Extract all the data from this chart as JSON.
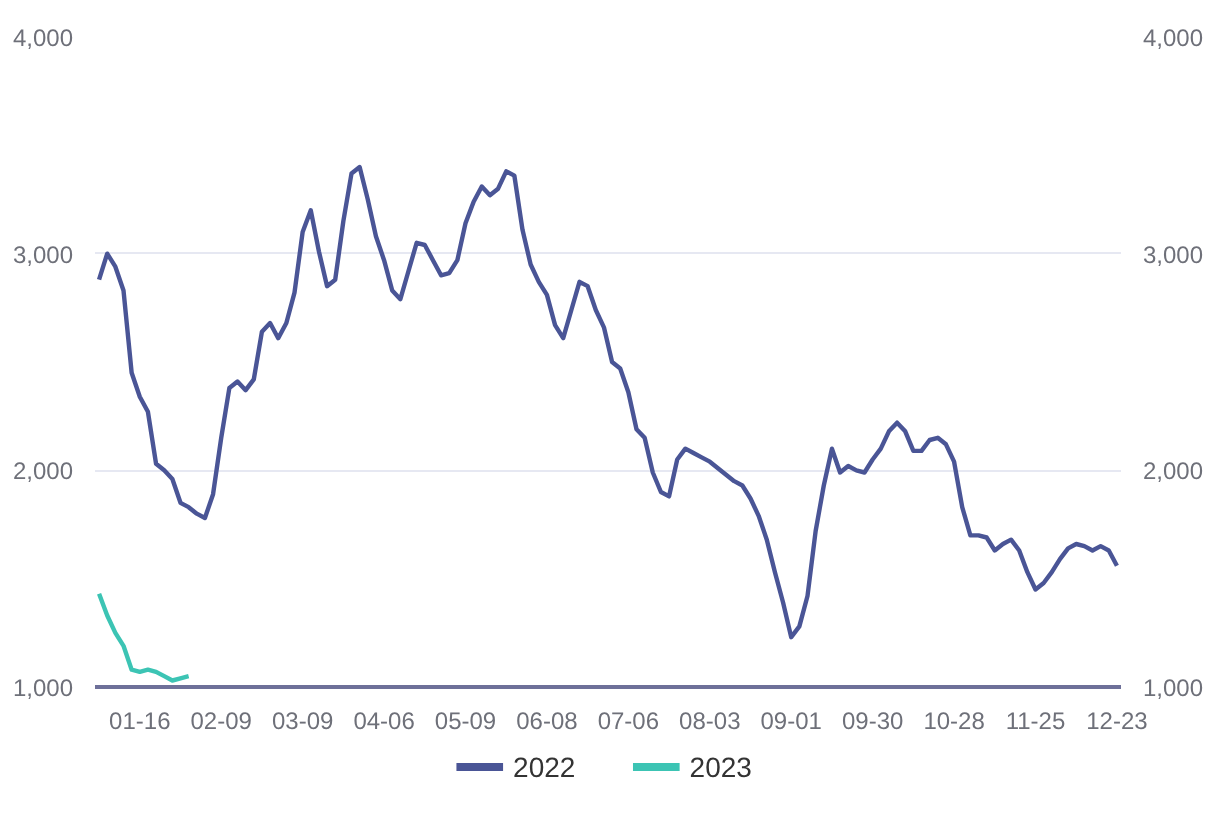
{
  "chart_data": {
    "type": "line",
    "categories": [
      null,
      null,
      null,
      null,
      null,
      "01-16",
      null,
      null,
      null,
      null,
      null,
      null,
      null,
      null,
      null,
      "02-09",
      null,
      null,
      null,
      null,
      null,
      null,
      null,
      null,
      null,
      "03-09",
      null,
      null,
      null,
      null,
      null,
      null,
      null,
      null,
      null,
      "04-06",
      null,
      null,
      null,
      null,
      null,
      null,
      null,
      null,
      null,
      "05-09",
      null,
      null,
      null,
      null,
      null,
      null,
      null,
      null,
      null,
      "06-08",
      null,
      null,
      null,
      null,
      null,
      null,
      null,
      null,
      null,
      "07-06",
      null,
      null,
      null,
      null,
      null,
      null,
      null,
      null,
      null,
      "08-03",
      null,
      null,
      null,
      null,
      null,
      null,
      null,
      null,
      null,
      "09-01",
      null,
      null,
      null,
      null,
      null,
      null,
      null,
      null,
      null,
      "09-30",
      null,
      null,
      null,
      null,
      null,
      null,
      null,
      null,
      null,
      "10-28",
      null,
      null,
      null,
      null,
      null,
      null,
      null,
      null,
      null,
      "11-25",
      null,
      null,
      null,
      null,
      null,
      null,
      null,
      null,
      null,
      "12-23"
    ],
    "series": [
      {
        "name": "2022",
        "color": "#4a5596",
        "values": [
          2880,
          3000,
          2940,
          2830,
          2450,
          2340,
          2270,
          2030,
          2000,
          1960,
          1850,
          1830,
          1800,
          1780,
          1890,
          2150,
          2380,
          2410,
          2370,
          2420,
          2640,
          2680,
          2610,
          2680,
          2820,
          3100,
          3200,
          3010,
          2850,
          2880,
          3150,
          3370,
          3400,
          3250,
          3080,
          2970,
          2830,
          2790,
          2920,
          3050,
          3040,
          2970,
          2900,
          2910,
          2970,
          3140,
          3240,
          3310,
          3270,
          3300,
          3380,
          3360,
          3110,
          2950,
          2870,
          2810,
          2670,
          2610,
          2740,
          2870,
          2850,
          2740,
          2660,
          2500,
          2470,
          2360,
          2190,
          2150,
          1990,
          1900,
          1880,
          2050,
          2100,
          2080,
          2060,
          2040,
          2010,
          1980,
          1950,
          1930,
          1870,
          1790,
          1680,
          1530,
          1390,
          1230,
          1280,
          1420,
          1720,
          1930,
          2100,
          1990,
          2020,
          2000,
          1990,
          2050,
          2100,
          2180,
          2220,
          2180,
          2090,
          2090,
          2140,
          2150,
          2120,
          2040,
          1830,
          1700,
          1700,
          1690,
          1630,
          1660,
          1680,
          1630,
          1530,
          1450,
          1480,
          1530,
          1590,
          1640,
          1660,
          1650,
          1630,
          1650,
          1630,
          1560
        ]
      },
      {
        "name": "2023",
        "color": "#3cc4b4",
        "values": [
          1430,
          1330,
          1250,
          1190,
          1080,
          1070,
          1080,
          1070,
          1050,
          1030,
          1040,
          1050,
          null,
          null,
          null,
          null,
          null,
          null,
          null,
          null,
          null,
          null,
          null,
          null,
          null,
          null,
          null,
          null,
          null,
          null,
          null,
          null,
          null,
          null,
          null,
          null,
          null,
          null,
          null,
          null,
          null,
          null,
          null,
          null,
          null,
          null,
          null,
          null,
          null,
          null,
          null,
          null,
          null,
          null,
          null,
          null,
          null,
          null,
          null,
          null,
          null,
          null,
          null,
          null,
          null,
          null,
          null,
          null,
          null,
          null,
          null,
          null,
          null,
          null,
          null,
          null,
          null,
          null,
          null,
          null,
          null,
          null,
          null,
          null,
          null,
          null,
          null,
          null,
          null,
          null,
          null,
          null,
          null,
          null,
          null,
          null,
          null,
          null,
          null,
          null,
          null,
          null,
          null,
          null,
          null,
          null,
          null,
          null,
          null,
          null,
          null,
          null,
          null,
          null,
          null,
          null,
          null,
          null,
          null,
          null,
          null,
          null,
          null,
          null,
          null,
          null
        ]
      }
    ],
    "ylim": [
      1000,
      4000
    ],
    "yticks": [
      {
        "value": 1000,
        "label": "1,000"
      },
      {
        "value": 2000,
        "label": "2,000"
      },
      {
        "value": 3000,
        "label": "3,000"
      },
      {
        "value": 4000,
        "label": "4,000"
      }
    ],
    "y2lim": [
      1000,
      4000
    ],
    "y2ticks": [
      {
        "value": 1000,
        "label": "1,000"
      },
      {
        "value": 2000,
        "label": "2,000"
      },
      {
        "value": 3000,
        "label": "3,000"
      },
      {
        "value": 4000,
        "label": "4,000"
      }
    ],
    "grid": "y",
    "legend": "bottom",
    "marker": "none",
    "line_style": "solid"
  }
}
